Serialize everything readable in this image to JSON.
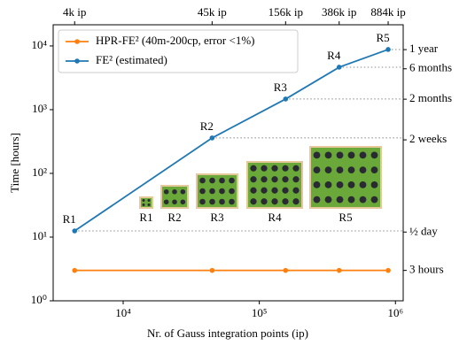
{
  "chart_data": {
    "type": "line",
    "xlabel": "Nr. of Gauss integration points (ip)",
    "ylabel": "Time [hours]",
    "xscale": "log",
    "yscale": "log",
    "xlim": [
      3060,
      1140000
    ],
    "ylim": [
      1,
      21500
    ],
    "xticks": [
      {
        "value": 10000,
        "label": "10⁴"
      },
      {
        "value": 100000,
        "label": "10⁵"
      },
      {
        "value": 1000000,
        "label": "10⁶"
      }
    ],
    "yticks": [
      {
        "value": 1,
        "label": "10⁰"
      },
      {
        "value": 10,
        "label": "10¹"
      },
      {
        "value": 100,
        "label": "10²"
      },
      {
        "value": 1000,
        "label": "10³"
      },
      {
        "value": 10000,
        "label": "10⁴"
      }
    ],
    "x2ticks": [
      {
        "value": 4400,
        "label": "4k ip"
      },
      {
        "value": 45000,
        "label": "45k ip"
      },
      {
        "value": 156000,
        "label": "156k ip"
      },
      {
        "value": 386000,
        "label": "386k ip"
      },
      {
        "value": 884000,
        "label": "884k ip"
      }
    ],
    "y2ticks": [
      {
        "value": 8760,
        "label": "1 year"
      },
      {
        "value": 4380,
        "label": "6 months"
      },
      {
        "value": 1460,
        "label": "2 months"
      },
      {
        "value": 336,
        "label": "2 weeks"
      },
      {
        "value": 12,
        "label": "½ day"
      },
      {
        "value": 3,
        "label": "3 hours"
      }
    ],
    "x": [
      4400,
      45000,
      156000,
      386000,
      884000
    ],
    "point_labels": [
      "R1",
      "R2",
      "R3",
      "R4",
      "R5"
    ],
    "series": [
      {
        "name": "HPR-FE² (40m-200cp, error <1%)",
        "color": "#ff7f0e",
        "values": [
          3,
          3,
          3,
          3,
          3
        ]
      },
      {
        "name": "FE² (estimated)",
        "color": "#1f77b4",
        "values": [
          12.5,
          360,
          1470,
          4640,
          8800
        ]
      }
    ],
    "legend": "upper left"
  }
}
